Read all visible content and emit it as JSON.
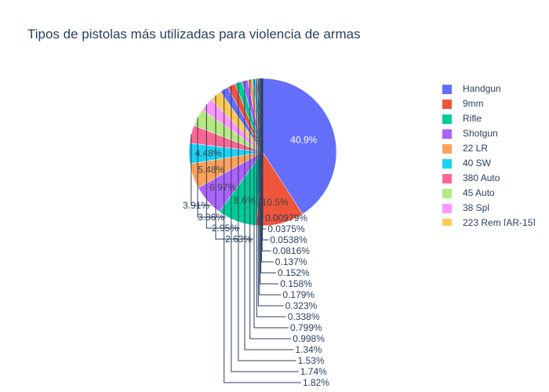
{
  "chart_data": {
    "type": "pie",
    "title": "Tipos de pistolas más utilizadas para violencia de armas",
    "labels": [
      "Handgun",
      "9mm",
      "Rifle",
      "Shotgun",
      "22 LR",
      "40 SW",
      "380 Auto",
      "45 Auto",
      "38 Spl",
      "223 Rem [AR-15]",
      "",
      "",
      "",
      "",
      "",
      "",
      "",
      "",
      "",
      "",
      "",
      "",
      "",
      "",
      "",
      "",
      ""
    ],
    "values": [
      40.9,
      10.5,
      8.6,
      6.97,
      5.48,
      4.48,
      3.91,
      3.86,
      2.95,
      2.63,
      1.82,
      1.74,
      1.53,
      1.34,
      0.998,
      0.799,
      0.338,
      0.323,
      0.179,
      0.158,
      0.152,
      0.137,
      0.0816,
      0.0538,
      0.0375,
      0.00979,
      0.0
    ],
    "text_labels": [
      "40.9%",
      "10.5%",
      "8.6%",
      "6.97%",
      "5.48%",
      "4.48%",
      "3.91%",
      "3.86%",
      "2.95%",
      "2.63%",
      "1.82%",
      "1.74%",
      "1.53%",
      "1.34%",
      "0.998%",
      "0.799%",
      "0.338%",
      "0.323%",
      "0.179%",
      "0.158%",
      "0.152%",
      "0.137%",
      "0.0816%",
      "0.0538%",
      "0.0375%",
      "0.00979%"
    ],
    "colors": [
      "#636efa",
      "#EF553B",
      "#00cc96",
      "#ab63fa",
      "#FFA15A",
      "#19d3f3",
      "#FF6692",
      "#B6E880",
      "#FF97FF",
      "#FECB52",
      "#636efa",
      "#EF553B",
      "#00cc96",
      "#ab63fa",
      "#FFA15A",
      "#19d3f3",
      "#FF6692",
      "#B6E880",
      "#FF97FF",
      "#FECB52",
      "#636efa",
      "#EF553B",
      "#00cc96",
      "#ab63fa",
      "#FFA15A",
      "#19d3f3",
      "#FF6692"
    ],
    "legend": {
      "placement": "right",
      "visible_entries": [
        "Handgun",
        "9mm",
        "Rifle",
        "Shotgun",
        "22 LR",
        "40 SW",
        "380 Auto",
        "45 Auto",
        "38 Spl",
        "223 Rem [AR-15]"
      ]
    },
    "direction": "clockwise",
    "sort": "descending",
    "text_info": "percent"
  }
}
